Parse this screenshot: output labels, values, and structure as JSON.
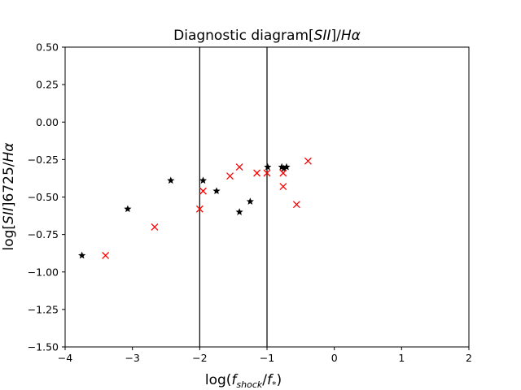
{
  "chart_data": {
    "type": "scatter",
    "title": "Diagnostic diagram[SII]/Hα",
    "title_parts": {
      "pre": "Diagnostic diagram[",
      "math": "SII",
      "mid": "]/",
      "math2": "Hα"
    },
    "xlabel": "log(f_shock/f*)",
    "xlabel_parts": {
      "pre": "log(",
      "f1": "f",
      "sub1": "shock",
      "slash": "/",
      "f2": "f",
      "sub2": "*",
      "post": ")"
    },
    "ylabel": "log[SII]6725/Hα",
    "ylabel_parts": {
      "pre": "log[",
      "math": "SII",
      "mid": "]6725/",
      "math2": "Hα"
    },
    "xlim": [
      -4,
      2
    ],
    "ylim": [
      -1.5,
      0.5
    ],
    "x_ticks": [
      -4,
      -3,
      -2,
      -1,
      0,
      1,
      2
    ],
    "x_tick_labels": [
      "−4",
      "−3",
      "−2",
      "−1",
      "0",
      "1",
      "2"
    ],
    "y_ticks": [
      -1.5,
      -1.25,
      -1.0,
      -0.75,
      -0.5,
      -0.25,
      0.0,
      0.25,
      0.5
    ],
    "y_tick_labels": [
      "−1.50",
      "−1.25",
      "−1.00",
      "−0.75",
      "−0.50",
      "−0.25",
      "0.00",
      "0.25",
      "0.50"
    ],
    "vlines": [
      -2,
      -1
    ],
    "grid": false,
    "series": [
      {
        "marker": "star",
        "color": "#000000",
        "points": [
          [
            -3.75,
            -0.89
          ],
          [
            -3.07,
            -0.58
          ],
          [
            -2.43,
            -0.39
          ],
          [
            -1.95,
            -0.39
          ],
          [
            -1.75,
            -0.46
          ],
          [
            -1.41,
            -0.6
          ],
          [
            -1.25,
            -0.53
          ],
          [
            -0.99,
            -0.3
          ],
          [
            -0.78,
            -0.3
          ],
          [
            -0.75,
            -0.31
          ],
          [
            -0.71,
            -0.3
          ]
        ]
      },
      {
        "marker": "x",
        "color": "#ff0000",
        "points": [
          [
            -3.4,
            -0.89
          ],
          [
            -2.67,
            -0.7
          ],
          [
            -2.0,
            -0.58
          ],
          [
            -1.95,
            -0.46
          ],
          [
            -1.55,
            -0.36
          ],
          [
            -1.41,
            -0.3
          ],
          [
            -1.15,
            -0.34
          ],
          [
            -1.0,
            -0.34
          ],
          [
            -0.76,
            -0.34
          ],
          [
            -0.76,
            -0.43
          ],
          [
            -0.56,
            -0.55
          ],
          [
            -0.39,
            -0.26
          ]
        ]
      }
    ]
  }
}
